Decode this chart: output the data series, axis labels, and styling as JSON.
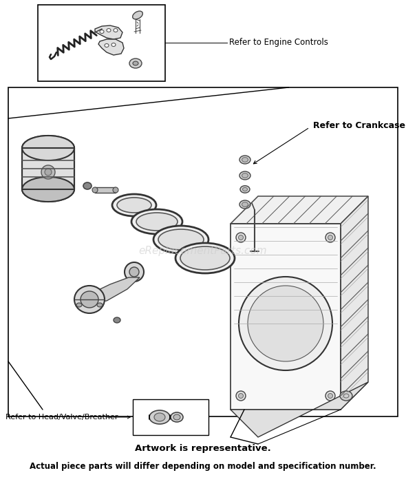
{
  "bg_color": "#ffffff",
  "fig_width": 5.9,
  "fig_height": 7.06,
  "dpi": 100,
  "title_line1": "Artwork is representative.",
  "title_line2": "Actual piece parts will differ depending on model and specification number.",
  "label_engine_controls": "Refer to Engine Controls",
  "label_crankcase": "Refer to Crankcase",
  "label_head_valve": "Refer to Head/Valve/Breather",
  "watermark": "eReplacementParts.com",
  "border_color": "#000000",
  "line_color": "#000000",
  "text_color": "#000000"
}
